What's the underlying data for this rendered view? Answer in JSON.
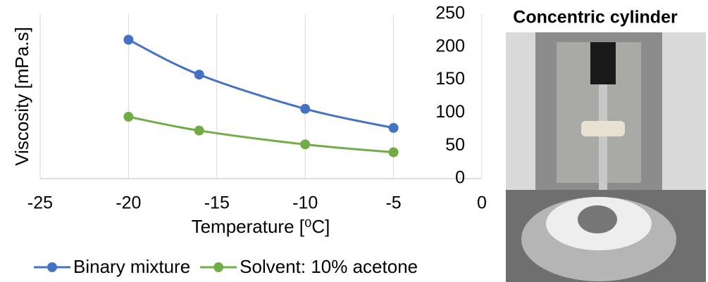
{
  "chart_data": {
    "type": "line",
    "x_label": "Temperature [⁰C]",
    "y_label": "Viscosity [mPa.s]",
    "x": [
      -20,
      -16,
      -10,
      -5
    ],
    "series": [
      {
        "name": "Binary mixture",
        "color": "#4472c4",
        "values": [
          211,
          158,
          106,
          77
        ]
      },
      {
        "name": "Solvent: 10% acetone",
        "color": "#70ad47",
        "values": [
          94,
          73,
          52,
          40
        ]
      }
    ],
    "xlim": [
      -25,
      0
    ],
    "xticks": [
      -25,
      -20,
      -15,
      -10,
      -5,
      0
    ],
    "ylim": [
      0,
      250
    ],
    "yticks": [
      0,
      50,
      100,
      150,
      200,
      250
    ],
    "grid": true,
    "legend": "bottom"
  },
  "photo": {
    "title": "Concentric cylinder"
  }
}
